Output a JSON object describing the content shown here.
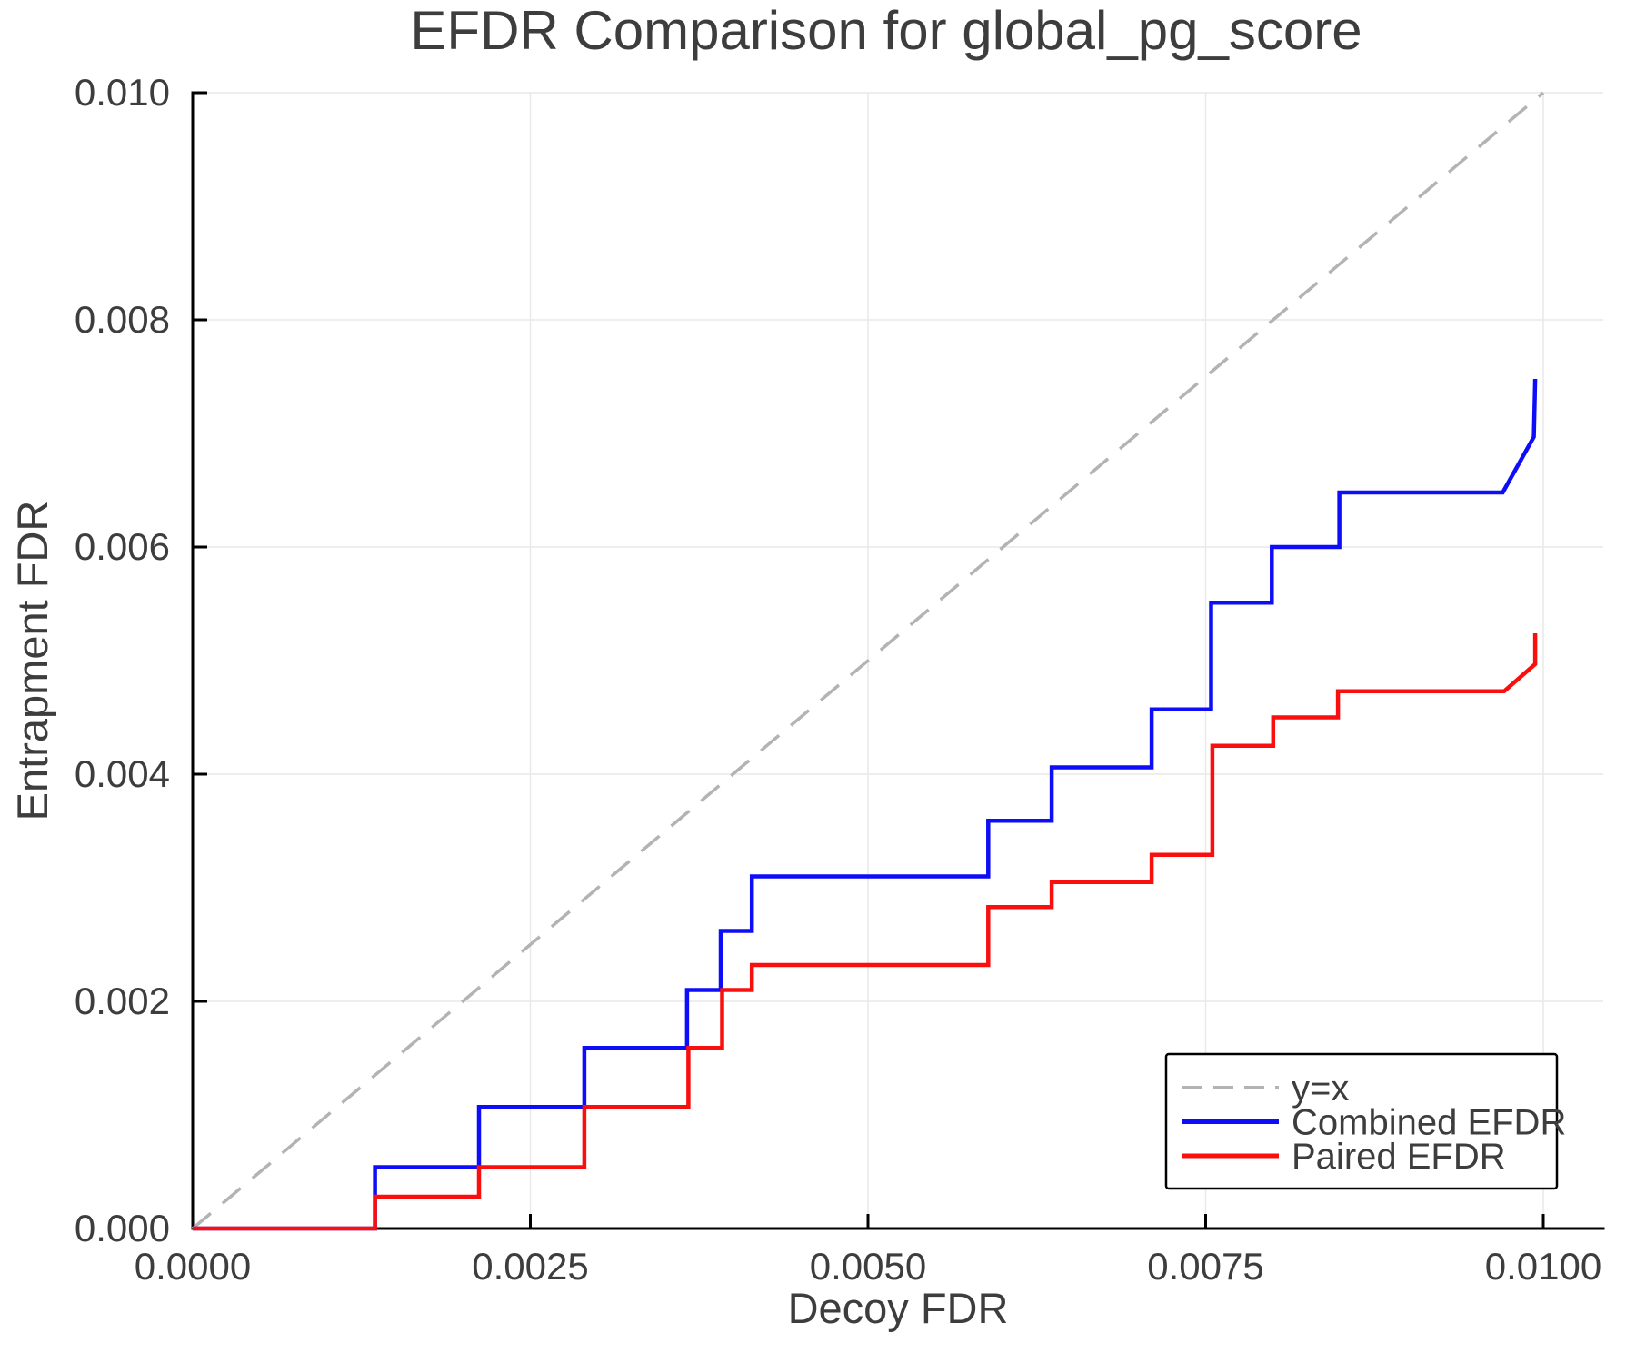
{
  "chart_data": {
    "type": "line",
    "title": "EFDR Comparison for global_pg_score",
    "xlabel": "Decoy FDR",
    "ylabel": "Entrapment FDR",
    "xlim": [
      0,
      0.010444
    ],
    "ylim": [
      0,
      0.01
    ],
    "grid": true,
    "grid_color": "#e9e9e9",
    "axis_color": "#000000",
    "text_color": "#3d3d3d",
    "background": "#ffffff",
    "tick_direction": "in",
    "legend": {
      "position": "lower right",
      "border_color": "#000000",
      "background": "#ffffff"
    },
    "x_ticks": {
      "values": [
        0.0,
        0.0025,
        0.005,
        0.0075,
        0.01
      ],
      "labels": [
        "0.0000",
        "0.0025",
        "0.0050",
        "0.0075",
        "0.0100"
      ]
    },
    "y_ticks": {
      "values": [
        0.0,
        0.002,
        0.004,
        0.006,
        0.008,
        0.01
      ],
      "labels": [
        "0.000",
        "0.002",
        "0.004",
        "0.006",
        "0.008",
        "0.010"
      ]
    },
    "series": [
      {
        "name": "y=x",
        "color": "#b3b3b3",
        "style": "dashed",
        "width": 3.5,
        "points": [
          [
            0,
            0
          ],
          [
            0.01,
            0.01
          ]
        ]
      },
      {
        "name": "Combined EFDR",
        "color": "#0d0dfa",
        "style": "solid",
        "width": 4.5,
        "points": [
          [
            0.0,
            0.0
          ],
          [
            0.00135,
            0.0
          ],
          [
            0.00135,
            0.00054
          ],
          [
            0.00212,
            0.00054
          ],
          [
            0.00212,
            0.00107
          ],
          [
            0.0029,
            0.00107
          ],
          [
            0.0029,
            0.00159
          ],
          [
            0.00366,
            0.00159
          ],
          [
            0.00366,
            0.0021
          ],
          [
            0.00391,
            0.0021
          ],
          [
            0.00391,
            0.00262
          ],
          [
            0.00414,
            0.00262
          ],
          [
            0.00414,
            0.0031
          ],
          [
            0.00589,
            0.0031
          ],
          [
            0.00589,
            0.00359
          ],
          [
            0.00636,
            0.00359
          ],
          [
            0.00636,
            0.00406
          ],
          [
            0.0071,
            0.00406
          ],
          [
            0.0071,
            0.00457
          ],
          [
            0.00754,
            0.00457
          ],
          [
            0.00754,
            0.00551
          ],
          [
            0.00799,
            0.00551
          ],
          [
            0.00799,
            0.006
          ],
          [
            0.00849,
            0.006
          ],
          [
            0.00849,
            0.00648
          ],
          [
            0.0097,
            0.00648
          ],
          [
            0.00993,
            0.00697
          ],
          [
            0.00994,
            0.00748
          ]
        ]
      },
      {
        "name": "Paired EFDR",
        "color": "#fa0f0f",
        "style": "solid",
        "width": 4.5,
        "points": [
          [
            0.0,
            0.0
          ],
          [
            0.00135,
            0.0
          ],
          [
            0.00135,
            0.00028
          ],
          [
            0.00212,
            0.00028
          ],
          [
            0.00212,
            0.00054
          ],
          [
            0.0029,
            0.00054
          ],
          [
            0.0029,
            0.00107
          ],
          [
            0.00367,
            0.00107
          ],
          [
            0.00367,
            0.00159
          ],
          [
            0.00392,
            0.00159
          ],
          [
            0.00392,
            0.0021
          ],
          [
            0.00414,
            0.0021
          ],
          [
            0.00414,
            0.00232
          ],
          [
            0.00589,
            0.00232
          ],
          [
            0.00589,
            0.00283
          ],
          [
            0.00636,
            0.00283
          ],
          [
            0.00636,
            0.00305
          ],
          [
            0.0071,
            0.00305
          ],
          [
            0.0071,
            0.00329
          ],
          [
            0.00755,
            0.00329
          ],
          [
            0.00755,
            0.00425
          ],
          [
            0.008,
            0.00425
          ],
          [
            0.008,
            0.0045
          ],
          [
            0.00848,
            0.0045
          ],
          [
            0.00848,
            0.00473
          ],
          [
            0.00971,
            0.00473
          ],
          [
            0.00994,
            0.00497
          ],
          [
            0.00994,
            0.00524
          ]
        ]
      }
    ]
  }
}
